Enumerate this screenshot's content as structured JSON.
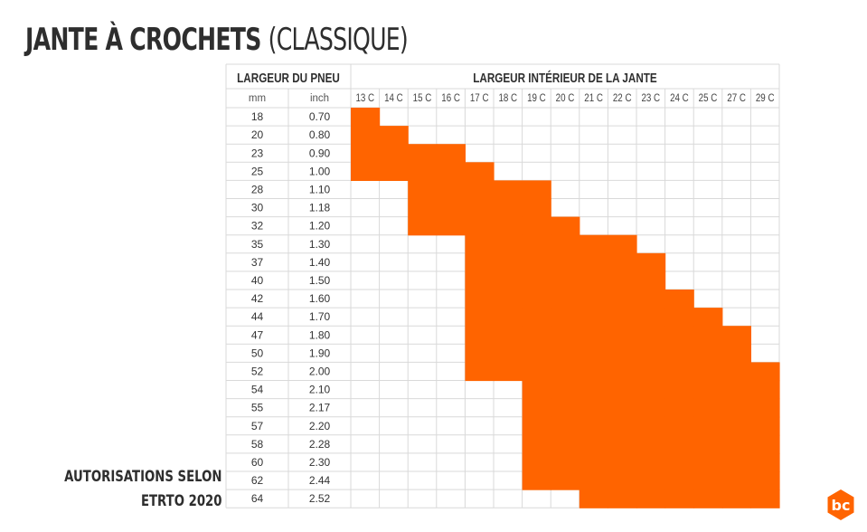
{
  "title": {
    "main": "JANTE À CROCHETS",
    "paren": "(CLASSIQUE)"
  },
  "note": {
    "line1": "AUTORISATIONS SELON",
    "line2": "ETRTO 2020"
  },
  "logo": {
    "text": "bc",
    "color": "#ff6400"
  },
  "colors": {
    "fill": "#ff6400",
    "grid": "#d9d9d9",
    "text": "#333333"
  },
  "chart_data": {
    "type": "table",
    "header_left": "LARGEUR DU PNEU",
    "header_right": "LARGEUR INTÉRIEUR DE LA JANTE",
    "unit_labels": [
      "mm",
      "inch"
    ],
    "columns": [
      "13 C",
      "14 C",
      "15 C",
      "16 C",
      "17 C",
      "18 C",
      "19 C",
      "20 C",
      "21 C",
      "22 C",
      "23 C",
      "24 C",
      "25 C",
      "27 C",
      "29 C"
    ],
    "rows": [
      {
        "mm": "18",
        "inch": "0.70",
        "allowed": [
          "13 C"
        ]
      },
      {
        "mm": "20",
        "inch": "0.80",
        "allowed": [
          "13 C",
          "14 C"
        ]
      },
      {
        "mm": "23",
        "inch": "0.90",
        "allowed": [
          "13 C",
          "14 C",
          "15 C",
          "16 C"
        ]
      },
      {
        "mm": "25",
        "inch": "1.00",
        "allowed": [
          "13 C",
          "14 C",
          "15 C",
          "16 C",
          "17 C"
        ]
      },
      {
        "mm": "28",
        "inch": "1.10",
        "allowed": [
          "15 C",
          "16 C",
          "17 C",
          "18 C",
          "19 C"
        ]
      },
      {
        "mm": "30",
        "inch": "1.18",
        "allowed": [
          "15 C",
          "16 C",
          "17 C",
          "18 C",
          "19 C"
        ]
      },
      {
        "mm": "32",
        "inch": "1.20",
        "allowed": [
          "15 C",
          "16 C",
          "17 C",
          "18 C",
          "19 C",
          "20 C"
        ]
      },
      {
        "mm": "35",
        "inch": "1.30",
        "allowed": [
          "17 C",
          "18 C",
          "19 C",
          "20 C",
          "21 C",
          "22 C"
        ]
      },
      {
        "mm": "37",
        "inch": "1.40",
        "allowed": [
          "17 C",
          "18 C",
          "19 C",
          "20 C",
          "21 C",
          "22 C",
          "23 C"
        ]
      },
      {
        "mm": "40",
        "inch": "1.50",
        "allowed": [
          "17 C",
          "18 C",
          "19 C",
          "20 C",
          "21 C",
          "22 C",
          "23 C"
        ]
      },
      {
        "mm": "42",
        "inch": "1.60",
        "allowed": [
          "17 C",
          "18 C",
          "19 C",
          "20 C",
          "21 C",
          "22 C",
          "23 C",
          "24 C"
        ]
      },
      {
        "mm": "44",
        "inch": "1.70",
        "allowed": [
          "17 C",
          "18 C",
          "19 C",
          "20 C",
          "21 C",
          "22 C",
          "23 C",
          "24 C",
          "25 C"
        ]
      },
      {
        "mm": "47",
        "inch": "1.80",
        "allowed": [
          "17 C",
          "18 C",
          "19 C",
          "20 C",
          "21 C",
          "22 C",
          "23 C",
          "24 C",
          "25 C",
          "27 C"
        ]
      },
      {
        "mm": "50",
        "inch": "1.90",
        "allowed": [
          "17 C",
          "18 C",
          "19 C",
          "20 C",
          "21 C",
          "22 C",
          "23 C",
          "24 C",
          "25 C",
          "27 C"
        ]
      },
      {
        "mm": "52",
        "inch": "2.00",
        "allowed": [
          "17 C",
          "18 C",
          "19 C",
          "20 C",
          "21 C",
          "22 C",
          "23 C",
          "24 C",
          "25 C",
          "27 C",
          "29 C"
        ]
      },
      {
        "mm": "54",
        "inch": "2.10",
        "allowed": [
          "19 C",
          "20 C",
          "21 C",
          "22 C",
          "23 C",
          "24 C",
          "25 C",
          "27 C",
          "29 C"
        ]
      },
      {
        "mm": "55",
        "inch": "2.17",
        "allowed": [
          "19 C",
          "20 C",
          "21 C",
          "22 C",
          "23 C",
          "24 C",
          "25 C",
          "27 C",
          "29 C"
        ]
      },
      {
        "mm": "57",
        "inch": "2.20",
        "allowed": [
          "19 C",
          "20 C",
          "21 C",
          "22 C",
          "23 C",
          "24 C",
          "25 C",
          "27 C",
          "29 C"
        ]
      },
      {
        "mm": "58",
        "inch": "2.28",
        "allowed": [
          "19 C",
          "20 C",
          "21 C",
          "22 C",
          "23 C",
          "24 C",
          "25 C",
          "27 C",
          "29 C"
        ]
      },
      {
        "mm": "60",
        "inch": "2.30",
        "allowed": [
          "19 C",
          "20 C",
          "21 C",
          "22 C",
          "23 C",
          "24 C",
          "25 C",
          "27 C",
          "29 C"
        ]
      },
      {
        "mm": "62",
        "inch": "2.44",
        "allowed": [
          "19 C",
          "20 C",
          "21 C",
          "22 C",
          "23 C",
          "24 C",
          "25 C",
          "27 C",
          "29 C"
        ]
      },
      {
        "mm": "64",
        "inch": "2.52",
        "allowed": [
          "21 C",
          "22 C",
          "23 C",
          "24 C",
          "25 C",
          "27 C",
          "29 C"
        ]
      }
    ]
  }
}
